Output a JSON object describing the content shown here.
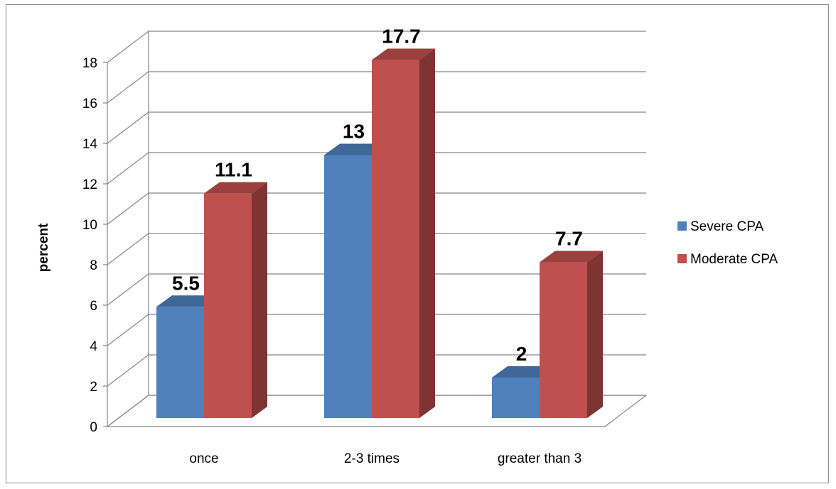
{
  "chart_data": {
    "type": "bar",
    "style": "3d-clustered-column",
    "categories": [
      "once",
      "2-3 times",
      "greater than 3"
    ],
    "series": [
      {
        "name": "Severe CPA",
        "values": [
          5.5,
          13,
          2
        ],
        "color": "#4f81bd"
      },
      {
        "name": "Moderate CPA",
        "values": [
          11.1,
          17.7,
          7.7
        ],
        "color": "#c0504d"
      }
    ],
    "data_labels": [
      [
        "5.5",
        "13",
        "2"
      ],
      [
        "11.1",
        "17.7",
        "7.7"
      ]
    ],
    "ylabel": "percent",
    "xlabel": "",
    "title": "",
    "ylim": [
      0,
      18
    ],
    "y_ticks": [
      "0",
      "2",
      "4",
      "6",
      "8",
      "10",
      "12",
      "14",
      "16",
      "18"
    ],
    "grid": true,
    "legend_position": "right"
  }
}
